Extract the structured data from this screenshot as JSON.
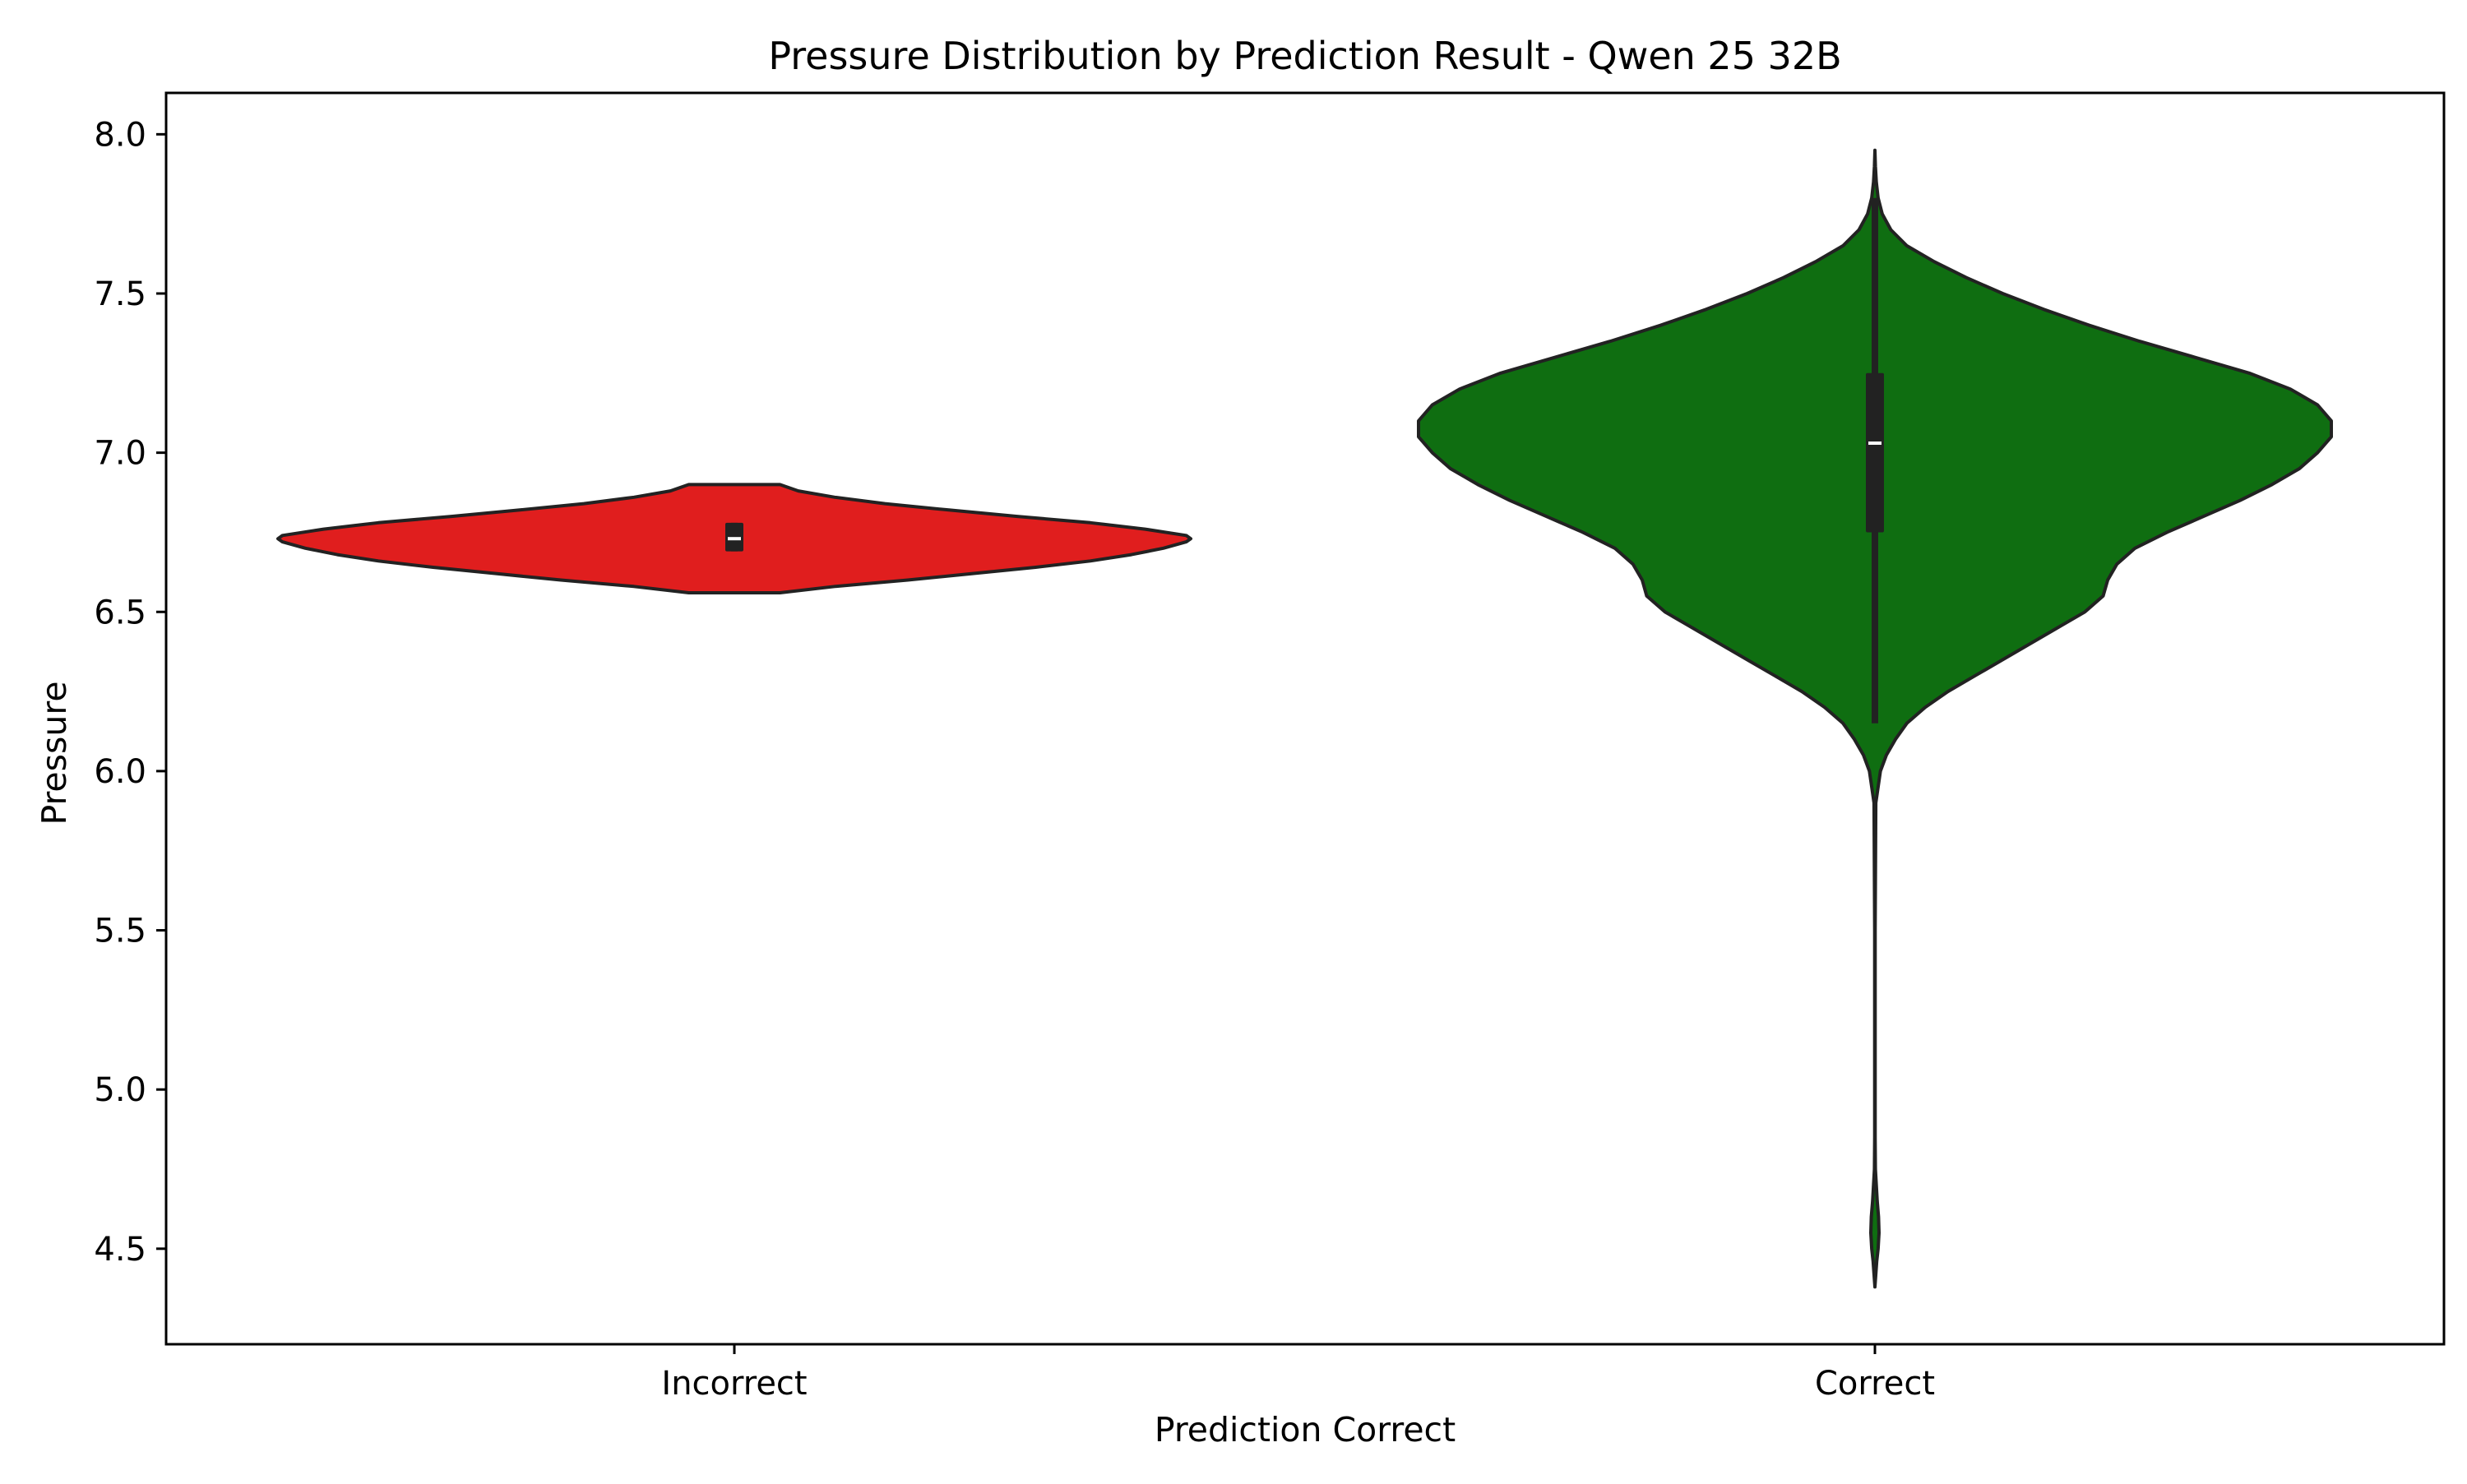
{
  "chart_data": {
    "type": "violin",
    "title": "Pressure Distribution by Prediction Result - Qwen 25 32B",
    "xlabel": "Prediction Correct",
    "ylabel": "Pressure",
    "categories": [
      "Incorrect",
      "Correct"
    ],
    "ylim": [
      4.2,
      8.13
    ],
    "yticks": [
      4.5,
      5.0,
      5.5,
      6.0,
      6.5,
      7.0,
      7.5,
      8.0
    ],
    "ytick_labels": [
      "4.5",
      "5.0",
      "5.5",
      "6.0",
      "6.5",
      "7.0",
      "7.5",
      "8.0"
    ],
    "grid": false,
    "legend": "none",
    "series": [
      {
        "category": "Incorrect",
        "color": "#e01e1e",
        "median": 6.73,
        "q1": 6.69,
        "q3": 6.78,
        "whisker_low": 6.69,
        "whisker_high": 6.78,
        "density_profile": [
          [
            6.56,
            0.1
          ],
          [
            6.58,
            0.22
          ],
          [
            6.6,
            0.38
          ],
          [
            6.62,
            0.52
          ],
          [
            6.64,
            0.66
          ],
          [
            6.66,
            0.78
          ],
          [
            6.68,
            0.87
          ],
          [
            6.7,
            0.94
          ],
          [
            6.72,
            0.99
          ],
          [
            6.73,
            1.0
          ],
          [
            6.74,
            0.99
          ],
          [
            6.76,
            0.9
          ],
          [
            6.78,
            0.78
          ],
          [
            6.8,
            0.62
          ],
          [
            6.82,
            0.47
          ],
          [
            6.84,
            0.33
          ],
          [
            6.86,
            0.22
          ],
          [
            6.88,
            0.14
          ],
          [
            6.9,
            0.1
          ]
        ]
      },
      {
        "category": "Correct",
        "color": "#0f6e11",
        "median": 7.03,
        "q1": 6.75,
        "q3": 7.25,
        "whisker_low": 6.15,
        "whisker_high": 7.8,
        "density_profile": [
          [
            4.38,
            0.0
          ],
          [
            4.42,
            0.002
          ],
          [
            4.46,
            0.004
          ],
          [
            4.5,
            0.007
          ],
          [
            4.55,
            0.009
          ],
          [
            4.6,
            0.008
          ],
          [
            4.65,
            0.005
          ],
          [
            4.7,
            0.003
          ],
          [
            4.75,
            0.001
          ],
          [
            4.85,
            0.0005
          ],
          [
            5.0,
            0.0005
          ],
          [
            5.5,
            0.0005
          ],
          [
            5.9,
            0.002
          ],
          [
            6.0,
            0.012
          ],
          [
            6.05,
            0.025
          ],
          [
            6.1,
            0.045
          ],
          [
            6.15,
            0.07
          ],
          [
            6.2,
            0.11
          ],
          [
            6.25,
            0.16
          ],
          [
            6.3,
            0.22
          ],
          [
            6.35,
            0.28
          ],
          [
            6.4,
            0.34
          ],
          [
            6.45,
            0.4
          ],
          [
            6.5,
            0.46
          ],
          [
            6.55,
            0.5
          ],
          [
            6.6,
            0.51
          ],
          [
            6.65,
            0.53
          ],
          [
            6.7,
            0.57
          ],
          [
            6.75,
            0.64
          ],
          [
            6.8,
            0.72
          ],
          [
            6.85,
            0.8
          ],
          [
            6.9,
            0.87
          ],
          [
            6.95,
            0.93
          ],
          [
            7.0,
            0.97
          ],
          [
            7.05,
            1.0
          ],
          [
            7.1,
            1.0
          ],
          [
            7.15,
            0.97
          ],
          [
            7.2,
            0.91
          ],
          [
            7.25,
            0.82
          ],
          [
            7.3,
            0.7
          ],
          [
            7.35,
            0.58
          ],
          [
            7.4,
            0.47
          ],
          [
            7.45,
            0.37
          ],
          [
            7.5,
            0.28
          ],
          [
            7.55,
            0.2
          ],
          [
            7.6,
            0.13
          ],
          [
            7.65,
            0.07
          ],
          [
            7.7,
            0.035
          ],
          [
            7.75,
            0.016
          ],
          [
            7.8,
            0.007
          ],
          [
            7.85,
            0.003
          ],
          [
            7.9,
            0.001
          ],
          [
            7.95,
            0.0
          ]
        ]
      }
    ]
  }
}
